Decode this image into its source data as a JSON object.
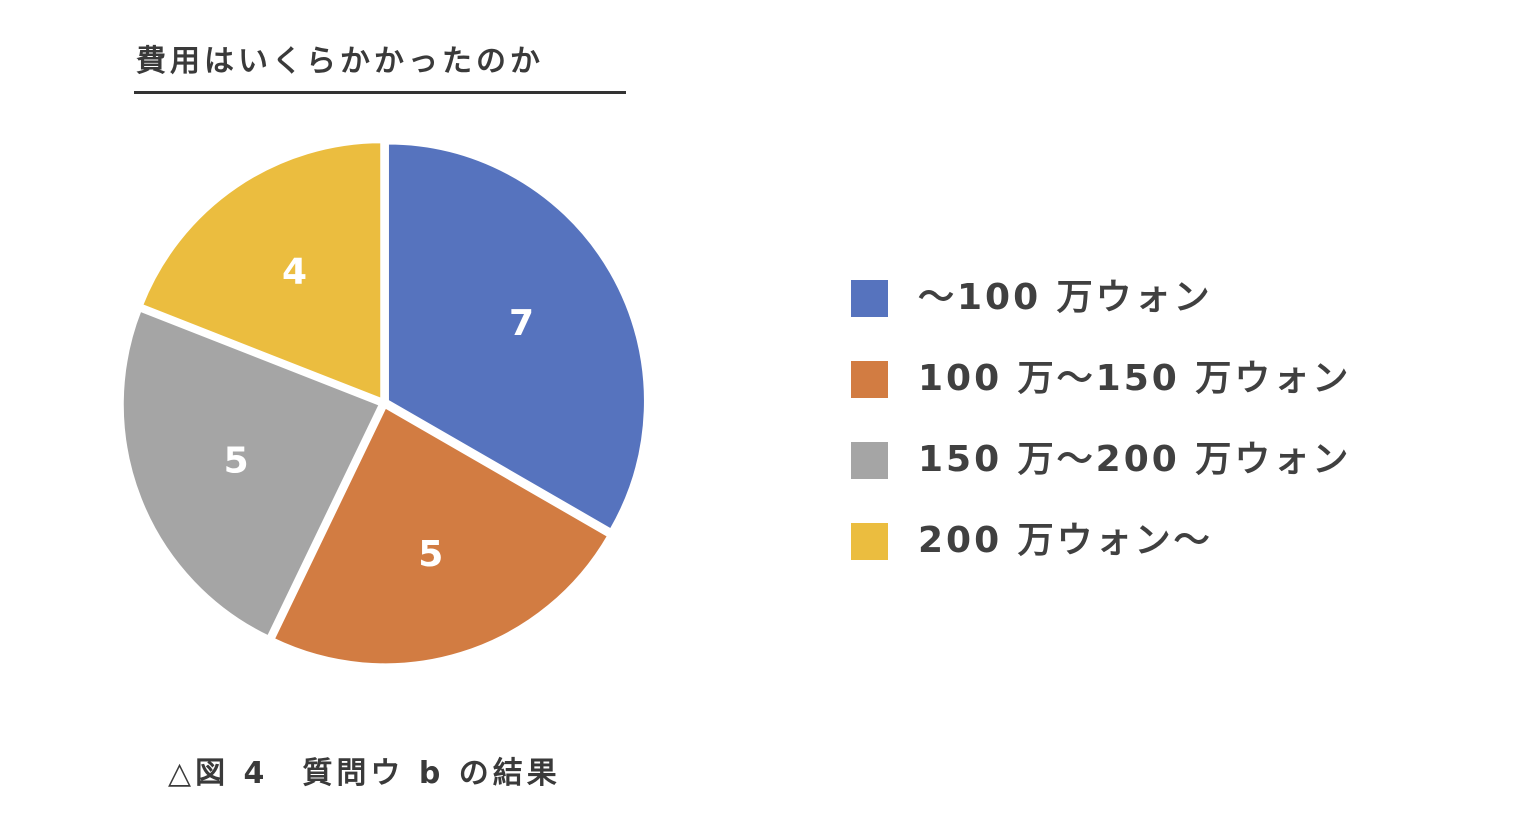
{
  "chart_data": {
    "type": "pie",
    "title": "費用はいくらかかったのか",
    "categories": [
      "～100 万ウォン",
      "100 万～150 万ウォン",
      "150 万～200 万ウォン",
      "200 万ウォン～"
    ],
    "values": [
      7,
      5,
      5,
      4
    ],
    "colors": [
      "#5673be",
      "#d27c42",
      "#a5a5a5",
      "#ebbd3f"
    ],
    "data_labels": [
      "7",
      "5",
      "5",
      "4"
    ],
    "legend_position": "right",
    "caption": "△図 4　質問ウ b の結果"
  }
}
